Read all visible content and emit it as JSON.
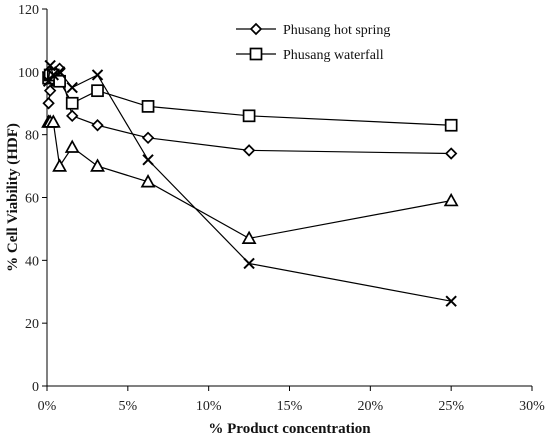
{
  "chart_data": {
    "type": "line",
    "xlabel": "% Product concentration",
    "ylabel": "% Cell Viability (HDF)",
    "xlim": [
      0,
      30
    ],
    "ylim": [
      0,
      120
    ],
    "x_ticks": [
      "0%",
      "5%",
      "10%",
      "15%",
      "20%",
      "25%",
      "30%"
    ],
    "x_tick_values": [
      0,
      5,
      10,
      15,
      20,
      25,
      30
    ],
    "y_ticks": [
      "0",
      "20",
      "40",
      "60",
      "80",
      "100",
      "120"
    ],
    "y_tick_values": [
      0,
      20,
      40,
      60,
      80,
      100,
      120
    ],
    "grid": false,
    "legend_position": "top-right",
    "series": [
      {
        "name": "Phusang hot spring",
        "marker": "diamond",
        "x": [
          0.098,
          0.195,
          0.39,
          0.78,
          1.56,
          3.125,
          6.25,
          12.5,
          25
        ],
        "y": [
          90,
          94,
          98,
          101,
          86,
          83,
          79,
          75,
          74
        ]
      },
      {
        "name": "Phusang waterfall",
        "marker": "square",
        "x": [
          0.098,
          0.195,
          0.39,
          0.78,
          1.56,
          3.125,
          6.25,
          12.5,
          25
        ],
        "y": [
          98,
          99,
          99,
          97,
          90,
          94,
          89,
          86,
          83
        ]
      },
      {
        "marker": "triangle",
        "x": [
          0.098,
          0.195,
          0.39,
          0.78,
          1.56,
          3.125,
          6.25,
          12.5,
          25
        ],
        "y": [
          84,
          84,
          84,
          70,
          76,
          70,
          65,
          47,
          59
        ]
      },
      {
        "marker": "x",
        "x": [
          0.098,
          0.195,
          0.39,
          0.78,
          1.56,
          3.125,
          6.25,
          12.5,
          25
        ],
        "y": [
          97,
          102,
          99,
          100,
          95,
          99,
          72,
          39,
          27
        ]
      }
    ]
  }
}
